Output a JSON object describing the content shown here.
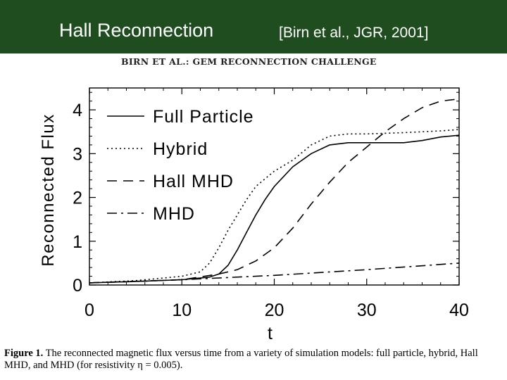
{
  "slide": {
    "title": "Hall Reconnection",
    "citation": "[Birn et al., JGR, 2001]",
    "header_color": "#1f4d1f"
  },
  "paper": {
    "running_head": "BIRN ET AL.: GEM RECONNECTION CHALLENGE",
    "caption_label": "Figure 1.",
    "caption_text": "The reconnected magnetic flux versus time from a variety of simulation models: full particle, hybrid, Hall MHD, and MHD (for resistivity η = 0.005)."
  },
  "chart_data": {
    "type": "line",
    "title": "",
    "xlabel": "t",
    "ylabel": "Reconnected Flux",
    "xlim": [
      0,
      40
    ],
    "ylim": [
      0,
      4.5
    ],
    "xticks": [
      0,
      10,
      20,
      30,
      40
    ],
    "yticks": [
      0,
      1,
      2,
      3,
      4
    ],
    "grid": false,
    "legend_position": "top-left",
    "series": [
      {
        "name": "Full Particle",
        "style": "solid",
        "x": [
          0,
          5,
          10,
          13,
          14,
          15,
          16,
          17,
          18,
          19,
          20,
          22,
          24,
          26,
          28,
          30,
          32,
          34,
          36,
          38,
          40
        ],
        "y": [
          0.05,
          0.08,
          0.12,
          0.18,
          0.25,
          0.45,
          0.8,
          1.2,
          1.6,
          1.95,
          2.25,
          2.7,
          3.0,
          3.2,
          3.25,
          3.25,
          3.25,
          3.25,
          3.3,
          3.38,
          3.42
        ]
      },
      {
        "name": "Hybrid",
        "style": "dotted",
        "x": [
          0,
          5,
          10,
          12,
          13,
          14,
          15,
          16,
          17,
          18,
          20,
          22,
          24,
          26,
          28,
          30,
          34,
          38,
          40
        ],
        "y": [
          0.05,
          0.1,
          0.2,
          0.3,
          0.5,
          0.85,
          1.25,
          1.6,
          1.95,
          2.25,
          2.6,
          2.85,
          3.2,
          3.4,
          3.45,
          3.45,
          3.48,
          3.52,
          3.55
        ]
      },
      {
        "name": "Hall MHD",
        "style": "dashed",
        "x": [
          0,
          5,
          10,
          14,
          16,
          18,
          20,
          22,
          24,
          26,
          28,
          30,
          32,
          34,
          36,
          38,
          40
        ],
        "y": [
          0.05,
          0.08,
          0.12,
          0.25,
          0.35,
          0.55,
          0.85,
          1.3,
          1.85,
          2.35,
          2.8,
          3.15,
          3.5,
          3.8,
          4.05,
          4.2,
          4.25
        ]
      },
      {
        "name": "MHD",
        "style": "dash-dot",
        "x": [
          0,
          10,
          20,
          30,
          40
        ],
        "y": [
          0.05,
          0.12,
          0.22,
          0.35,
          0.5
        ]
      }
    ]
  }
}
